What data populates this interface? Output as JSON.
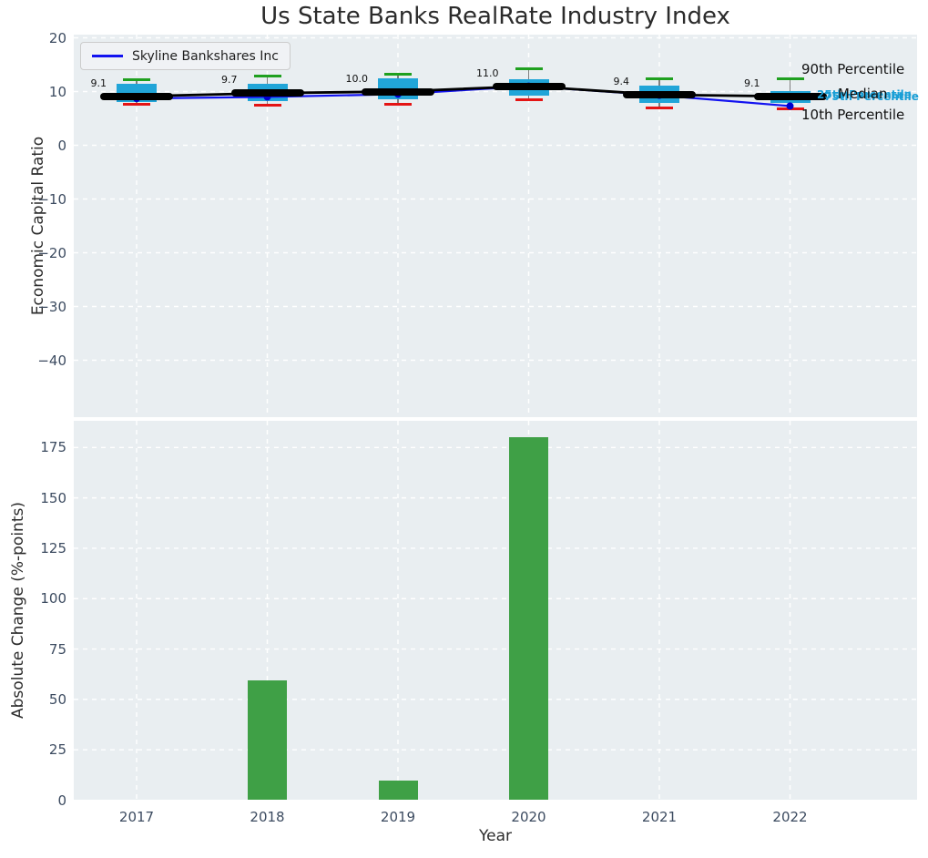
{
  "title": "Us State Banks RealRate Industry Index",
  "legend": {
    "label": "Skyline Bankshares Inc"
  },
  "colors": {
    "plot_bg": "#e9eef1",
    "grid": "#ffffff",
    "box_fill": "#21a5d8",
    "whisker": "#7f7f7f",
    "cap_p90": "#1fa01f",
    "cap_p10": "#e41414",
    "median": "#000000",
    "company_line": "#1212f0",
    "company_marker": "#0000cd",
    "bar_fill": "#3fa046",
    "quartile_label": "#1a9fd6",
    "tick_label": "#3c4b60",
    "text_dark": "#2b2b2b"
  },
  "chart_data": [
    {
      "type": "boxplot+line",
      "ylabel": "Economic Capital Ratio",
      "ylim": [
        -50.5,
        20.5
      ],
      "yticks": [
        20,
        10,
        0,
        -10,
        -20,
        -30,
        -40
      ],
      "years": [
        2017,
        2018,
        2019,
        2020,
        2021,
        2022
      ],
      "grid": true,
      "legend_position": "upper left",
      "boxes": [
        {
          "year": 2017,
          "p10": 7.6,
          "q1": 8.1,
          "median": 9.1,
          "q3": 11.4,
          "p90": 12.2,
          "label": "9.1"
        },
        {
          "year": 2018,
          "p10": 7.5,
          "q1": 8.3,
          "median": 9.7,
          "q3": 11.5,
          "p90": 12.9,
          "label": "9.7"
        },
        {
          "year": 2019,
          "p10": 7.7,
          "q1": 8.5,
          "median": 10.0,
          "q3": 12.4,
          "p90": 13.2,
          "label": "10.0"
        },
        {
          "year": 2020,
          "p10": 8.4,
          "q1": 9.3,
          "median": 11.0,
          "q3": 12.3,
          "p90": 14.2,
          "label": "11.0"
        },
        {
          "year": 2021,
          "p10": 6.9,
          "q1": 7.9,
          "median": 9.4,
          "q3": 11.1,
          "p90": 12.3,
          "label": "9.4"
        },
        {
          "year": 2022,
          "p10": 6.8,
          "q1": 7.9,
          "median": 9.1,
          "q3": 10.1,
          "p90": 12.4,
          "label": "9.1"
        }
      ],
      "series": [
        {
          "name": "Skyline Bankshares Inc",
          "values": [
            8.7,
            9.0,
            9.5,
            11.0,
            9.3,
            7.3
          ]
        }
      ],
      "right_labels": {
        "p90": "90th Percentile",
        "median": "Median",
        "p10": "10th Percentile",
        "overlap": [
          "25th Percentile",
          "75th Percentile"
        ]
      }
    },
    {
      "type": "bar",
      "ylabel": "Absolute Change (%-points)",
      "xlabel": "Year",
      "ylim": [
        0,
        188
      ],
      "yticks": [
        0,
        25,
        50,
        75,
        100,
        125,
        150,
        175
      ],
      "categories": [
        2017,
        2018,
        2019,
        2020,
        2021,
        2022
      ],
      "values": [
        0,
        59.5,
        9.8,
        180,
        0,
        0
      ],
      "grid": true
    }
  ]
}
